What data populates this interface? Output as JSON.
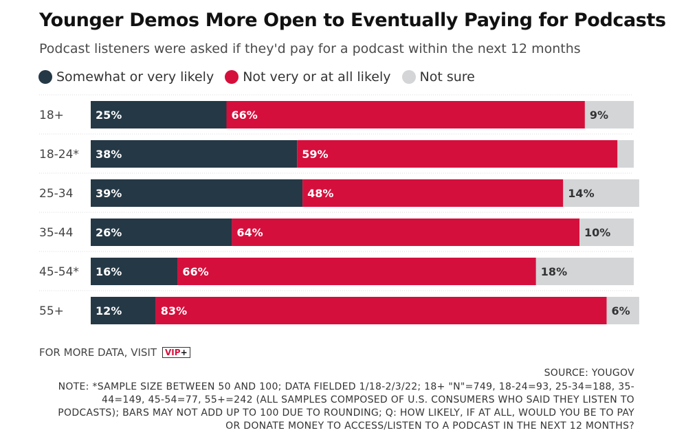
{
  "title": "Younger Demos More Open to Eventually Paying for Podcasts",
  "subtitle": "Podcast listeners were asked if they'd pay for a podcast within the next 12 months",
  "footer": {
    "more_data": "FOR MORE DATA, VISIT",
    "vip_label": "VIP",
    "vip_plus": "+",
    "source": "SOURCE: YOUGOV",
    "note": "NOTE: *SAMPLE SIZE BETWEEN 50 AND 100; DATA FIELDED 1/18-2/3/22; 18+ \"N\"=749, 18-24=93, 25-34=188, 35-44=149, 45-54=77, 55+=242 (ALL SAMPLES COMPOSED OF U.S. CONSUMERS WHO SAID THEY LISTEN TO PODCASTS); BARS MAY NOT ADD UP TO 100 DUE TO ROUNDING; Q: HOW LIKELY, IF AT ALL, WOULD YOU BE TO PAY OR DONATE MONEY TO ACCESS/LISTEN TO A PODCAST IN THE NEXT 12 MONTHS?"
  },
  "chart_data": {
    "type": "bar",
    "orientation": "horizontal",
    "stacked": true,
    "legend_placement": "top-left",
    "grid": false,
    "xlim": [
      0,
      100
    ],
    "categories": [
      "18+",
      "18-24*",
      "25-34",
      "35-44",
      "45-54*",
      "55+"
    ],
    "series": [
      {
        "name": "Somewhat or very likely",
        "color": "#253845",
        "values": [
          25,
          38,
          39,
          26,
          16,
          12
        ]
      },
      {
        "name": "Not very or at all likely",
        "color": "#d50f3c",
        "values": [
          66,
          59,
          48,
          64,
          66,
          83
        ]
      },
      {
        "name": "Not sure",
        "color": "#d3d5d7",
        "values": [
          9,
          3,
          14,
          10,
          18,
          6
        ]
      }
    ],
    "value_labels": [
      [
        "25%",
        "38%",
        "39%",
        "26%",
        "16%",
        "12%"
      ],
      [
        "66%",
        "59%",
        "48%",
        "64%",
        "66%",
        "83%"
      ],
      [
        "9%",
        "",
        "14%",
        "10%",
        "18%",
        "6%"
      ]
    ]
  }
}
